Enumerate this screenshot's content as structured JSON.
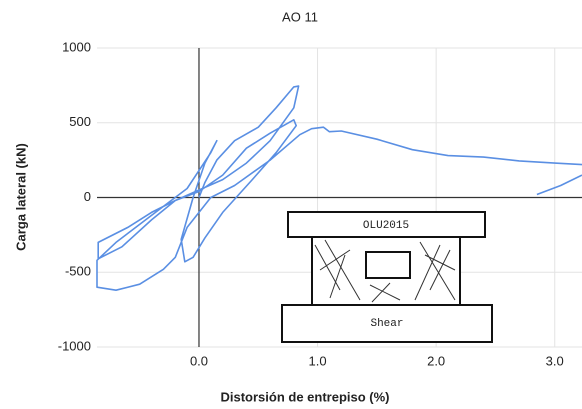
{
  "chart_data": {
    "type": "line",
    "title": "AO 11",
    "x_label": "Distorsión de entrepiso (%)",
    "y_label": "Carga lateral (kN)",
    "x": [
      0,
      0.05,
      0.15,
      0.3,
      0.5,
      0.65,
      0.8,
      0.84,
      0.8,
      0.6,
      0.4,
      0.2,
      0,
      -0.2,
      -0.4,
      -0.6,
      -0.85,
      -0.85,
      -0.65,
      -0.4,
      -0.2,
      0,
      0.2,
      0.4,
      0.6,
      0.8,
      0.82,
      0.65,
      0.45,
      0.2,
      0.05,
      -0.05,
      -0.12,
      -0.15,
      -0.05,
      0.05,
      0.15,
      0.1,
      -0.1,
      -0.4,
      -0.7,
      -0.86,
      -0.86,
      -0.7,
      -0.5,
      -0.3,
      -0.2,
      -0.1,
      0.1,
      0.3,
      0.6,
      0.85,
      0.95,
      1.05,
      1.1,
      1.2,
      1.5,
      1.8,
      2.1,
      2.4,
      2.7,
      3.0,
      3.23,
      null,
      2.85,
      3.05,
      3.23
    ],
    "series": [
      {
        "name": "AO 11",
        "color": "#5a8fe3",
        "values": [
          0,
          100,
          250,
          380,
          470,
          600,
          740,
          745,
          600,
          380,
          230,
          120,
          50,
          -20,
          -100,
          -200,
          -300,
          -410,
          -330,
          -150,
          -20,
          40,
          150,
          330,
          430,
          520,
          480,
          300,
          120,
          -100,
          -270,
          -400,
          -430,
          -280,
          0,
          230,
          380,
          300,
          60,
          -120,
          -300,
          -420,
          -600,
          -620,
          -580,
          -480,
          -400,
          -200,
          0,
          80,
          250,
          420,
          460,
          470,
          440,
          445,
          390,
          320,
          280,
          270,
          245,
          230,
          220,
          null,
          20,
          80,
          150
        ]
      }
    ],
    "xlim": [
      -0.86,
      3.23
    ],
    "ylim": [
      -1000,
      1000
    ],
    "xticks": [
      {
        "value": 0,
        "label": "0.0"
      },
      {
        "value": 1,
        "label": "1.0"
      },
      {
        "value": 2,
        "label": "2.0"
      },
      {
        "value": 3,
        "label": "3.0"
      }
    ],
    "yticks": [
      -1000,
      -500,
      0,
      500,
      1000
    ],
    "grid": true,
    "inset_labels": [
      "OLU2015",
      "Shear"
    ]
  }
}
